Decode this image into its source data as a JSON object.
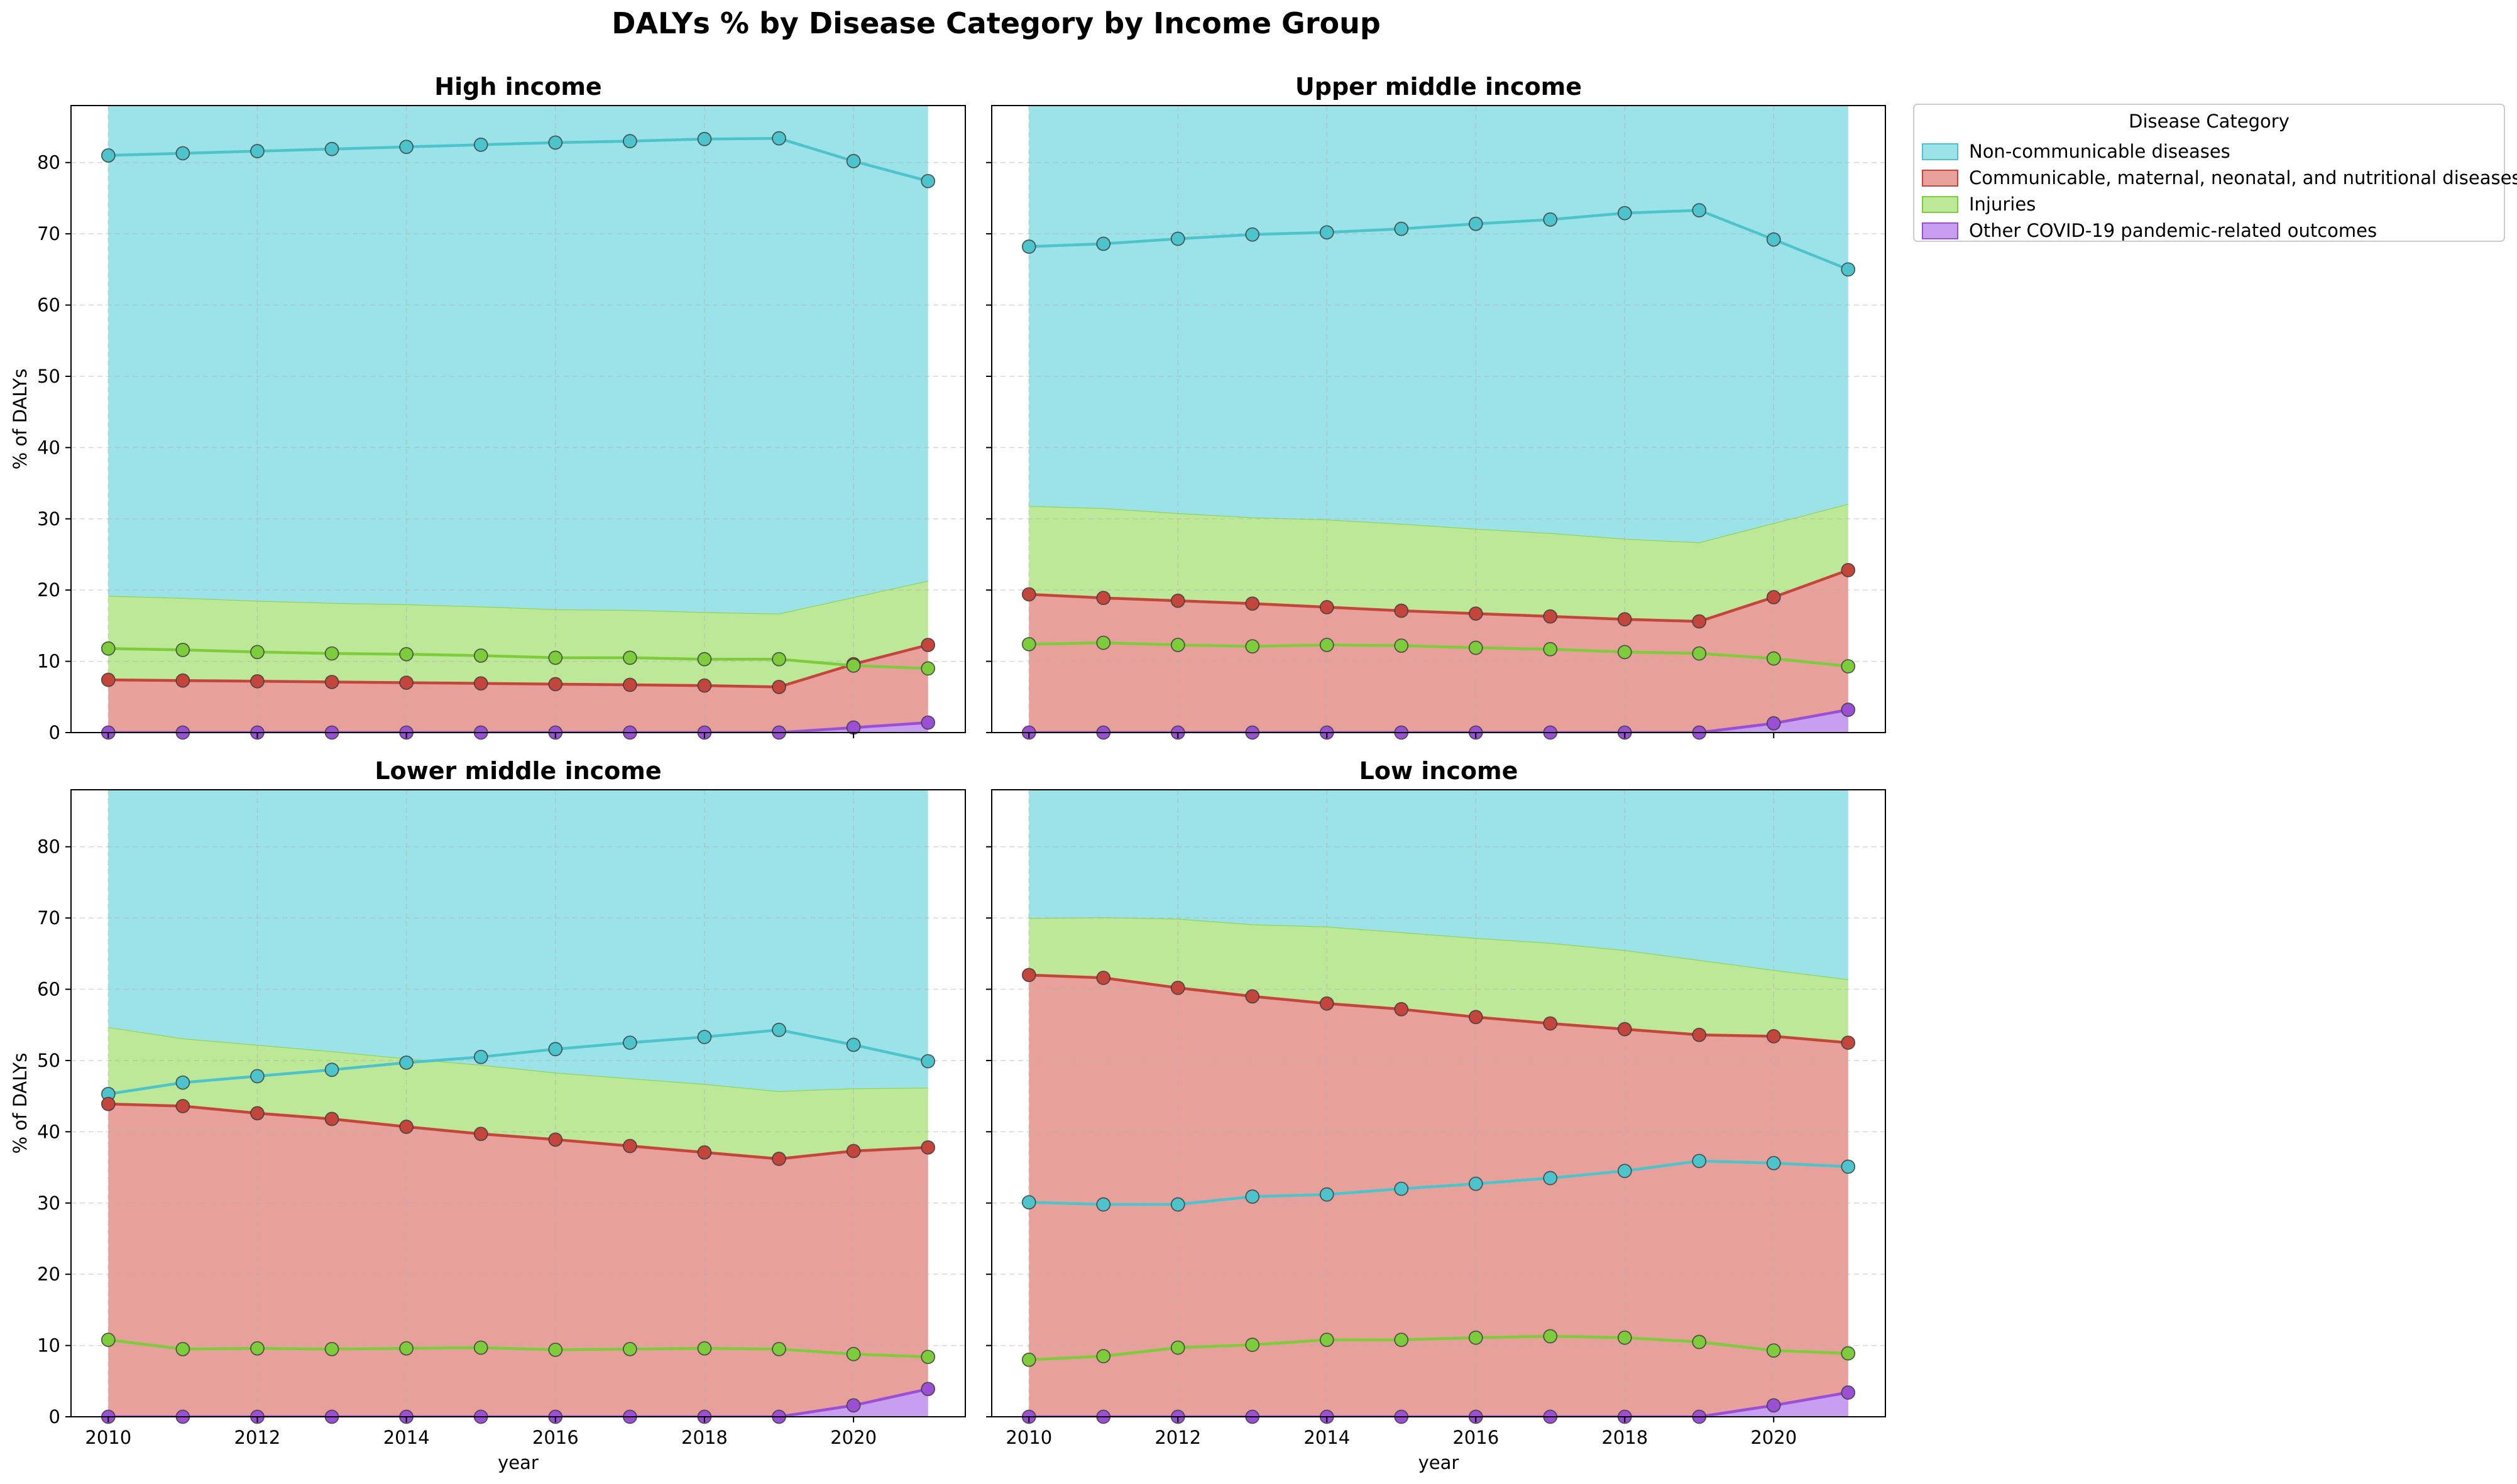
{
  "chart_data": {
    "type": "area",
    "title": "DALYs % by Disease Category by Income Group",
    "xlabel": "year",
    "ylabel": "% of DALYs",
    "x": [
      2010,
      2011,
      2012,
      2013,
      2014,
      2015,
      2016,
      2017,
      2018,
      2019,
      2020,
      2021
    ],
    "xticks": [
      2010,
      2012,
      2014,
      2016,
      2018,
      2020
    ],
    "yticks": [
      0,
      10,
      20,
      30,
      40,
      50,
      60,
      70,
      80
    ],
    "ylim": [
      0,
      88
    ],
    "grid": true,
    "legend": {
      "title": "Disease Category",
      "placement": "outside upper right",
      "entries": [
        {
          "key": "ncd",
          "label": "Non-communicable diseases"
        },
        {
          "key": "cmnn",
          "label": "Communicable, maternal, neonatal, and nutritional diseases"
        },
        {
          "key": "inj",
          "label": "Injuries"
        },
        {
          "key": "covid",
          "label": "Other COVID-19 pandemic-related outcomes"
        }
      ]
    },
    "colors": {
      "ncd": "#4dc4cc",
      "ncd_fill": "#9be3e8",
      "cmnn": "#c4453c",
      "cmnn_fill": "#e8a09b",
      "inj": "#7ccc3c",
      "inj_fill": "#bde898",
      "covid": "#9a4fd4",
      "covid_fill": "#c89ef0"
    },
    "panels": [
      {
        "title": "High income",
        "series": [
          {
            "key": "ncd",
            "values": [
              81.0,
              81.3,
              81.6,
              81.9,
              82.2,
              82.5,
              82.8,
              83.0,
              83.3,
              83.4,
              80.2,
              77.4
            ]
          },
          {
            "key": "cmnn",
            "values": [
              7.4,
              7.3,
              7.2,
              7.1,
              7.0,
              6.9,
              6.8,
              6.7,
              6.6,
              6.4,
              9.6,
              12.3
            ]
          },
          {
            "key": "inj",
            "values": [
              11.8,
              11.6,
              11.3,
              11.1,
              11.0,
              10.8,
              10.5,
              10.5,
              10.3,
              10.3,
              9.4,
              9.0
            ]
          },
          {
            "key": "covid",
            "values": [
              0,
              0,
              0,
              0,
              0,
              0,
              0,
              0,
              0,
              0,
              0.7,
              1.4
            ]
          }
        ]
      },
      {
        "title": "Upper middle income",
        "series": [
          {
            "key": "ncd",
            "values": [
              68.2,
              68.6,
              69.3,
              69.9,
              70.2,
              70.7,
              71.4,
              72.0,
              72.9,
              73.3,
              69.2,
              65.0
            ]
          },
          {
            "key": "cmnn",
            "values": [
              19.4,
              18.9,
              18.5,
              18.1,
              17.6,
              17.1,
              16.7,
              16.3,
              15.9,
              15.6,
              19.0,
              22.8
            ]
          },
          {
            "key": "inj",
            "values": [
              12.4,
              12.6,
              12.3,
              12.1,
              12.3,
              12.2,
              11.9,
              11.7,
              11.3,
              11.1,
              10.4,
              9.3
            ]
          },
          {
            "key": "covid",
            "values": [
              0,
              0,
              0,
              0,
              0,
              0,
              0,
              0,
              0,
              0,
              1.3,
              3.2
            ]
          }
        ]
      },
      {
        "title": "Lower middle income",
        "series": [
          {
            "key": "ncd",
            "values": [
              45.3,
              46.9,
              47.8,
              48.7,
              49.7,
              50.5,
              51.6,
              52.5,
              53.3,
              54.3,
              52.2,
              49.9
            ]
          },
          {
            "key": "cmnn",
            "values": [
              43.9,
              43.6,
              42.6,
              41.8,
              40.7,
              39.7,
              38.9,
              38.0,
              37.1,
              36.2,
              37.3,
              37.8
            ]
          },
          {
            "key": "inj",
            "values": [
              10.8,
              9.5,
              9.6,
              9.5,
              9.6,
              9.7,
              9.4,
              9.5,
              9.6,
              9.5,
              8.8,
              8.4
            ]
          },
          {
            "key": "covid",
            "values": [
              0,
              0,
              0,
              0,
              0,
              0,
              0,
              0,
              0,
              0,
              1.6,
              3.9
            ]
          }
        ]
      },
      {
        "title": "Low income",
        "series": [
          {
            "key": "ncd",
            "values": [
              30.1,
              29.8,
              29.8,
              30.9,
              31.2,
              32.0,
              32.7,
              33.5,
              34.5,
              35.9,
              35.6,
              35.1
            ]
          },
          {
            "key": "cmnn",
            "values": [
              62.0,
              61.6,
              60.2,
              59.0,
              58.0,
              57.2,
              56.1,
              55.2,
              54.4,
              53.6,
              53.4,
              52.5
            ]
          },
          {
            "key": "inj",
            "values": [
              8.0,
              8.5,
              9.7,
              10.1,
              10.8,
              10.8,
              11.1,
              11.3,
              11.1,
              10.5,
              9.3,
              8.9
            ]
          },
          {
            "key": "covid",
            "values": [
              0,
              0,
              0,
              0,
              0,
              0,
              0,
              0,
              0,
              0,
              1.6,
              3.4
            ]
          }
        ]
      }
    ]
  }
}
